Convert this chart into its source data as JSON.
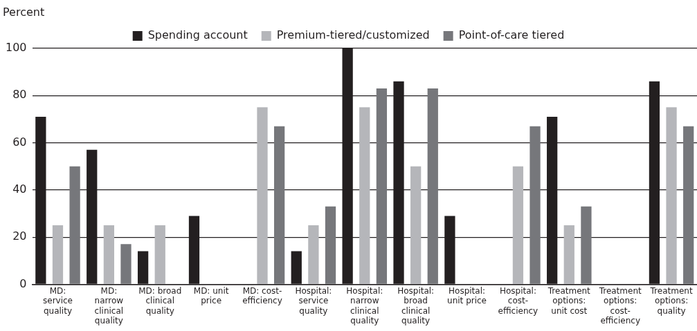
{
  "chart_data": {
    "type": "bar",
    "ylabel": "Percent",
    "categories": [
      "MD: service quality",
      "MD: narrow clinical quality",
      "MD: broad clinical quality",
      "MD: unit price",
      "MD: cost-efficiency",
      "Hospital: service quality",
      "Hospital: narrow clinical quality",
      "Hospital: broad clinical quality",
      "Hospital: unit price",
      "Hospital: cost-efficiency",
      "Treatment options: unit cost",
      "Treatment options: cost-efficiency",
      "Treatment options: quality"
    ],
    "series": [
      {
        "name": "Spending account",
        "color": "#231f20",
        "values": [
          71,
          57,
          14,
          29,
          0,
          14,
          100,
          86,
          29,
          0,
          71,
          0,
          86
        ]
      },
      {
        "name": "Premium-tiered/customized",
        "color": "#b5b6ba",
        "values": [
          25,
          25,
          25,
          0,
          75,
          25,
          75,
          50,
          0,
          50,
          25,
          0,
          75
        ]
      },
      {
        "name": "Point-of-care tiered",
        "color": "#76777b",
        "values": [
          50,
          17,
          0,
          0,
          67,
          33,
          83,
          83,
          0,
          67,
          33,
          0,
          67
        ]
      }
    ],
    "ylim": [
      0,
      100
    ],
    "yticks": [
      0,
      20,
      40,
      60,
      80,
      100
    ],
    "grid": "y",
    "legend": "top"
  }
}
